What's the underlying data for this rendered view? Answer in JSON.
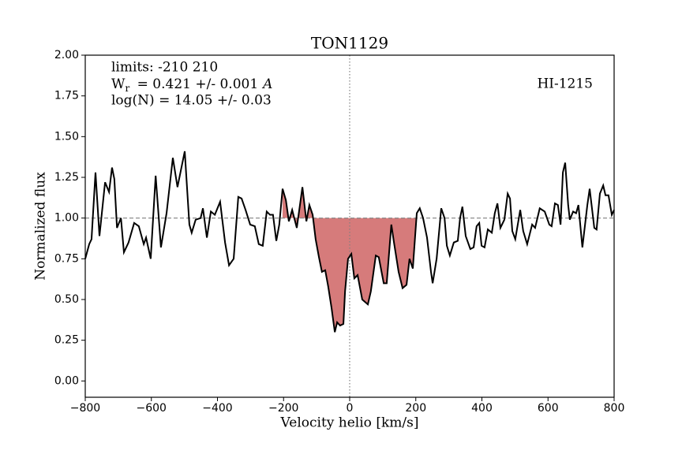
{
  "chart_data": {
    "type": "line",
    "title": "TON1129",
    "xlabel": "Velocity helio [km/s]",
    "ylabel": "Normalized flux",
    "annotations": {
      "limits": "limits: -210 210",
      "equivalent_width": {
        "main": "W",
        "sub": "r",
        "text": " = 0.421 +/- 0.001",
        "unit": "A"
      },
      "column_density": "log(N) = 14.05 +/- 0.03",
      "line_id": "HI-1215"
    },
    "color": "#000000",
    "fill_color": "#d67b7b",
    "shade_between": [
      -210,
      210
    ],
    "hline": 1,
    "vline": 0,
    "x": [
      -800,
      -788,
      -781,
      -769,
      -757,
      -740,
      -728,
      -719,
      -712,
      -704,
      -692,
      -683,
      -669,
      -652,
      -638,
      -623,
      -616,
      -602,
      -587,
      -571,
      -554,
      -535,
      -521,
      -499,
      -485,
      -478,
      -466,
      -451,
      -444,
      -432,
      -420,
      -408,
      -392,
      -377,
      -365,
      -351,
      -337,
      -327,
      -315,
      -301,
      -287,
      -275,
      -263,
      -251,
      -241,
      -232,
      -222,
      -213,
      -203,
      -193,
      -184,
      -174,
      -160,
      -143,
      -131,
      -122,
      -112,
      -103,
      -93,
      -84,
      -74,
      -65,
      -55,
      -45,
      -38,
      -29,
      -19,
      -14,
      -5,
      5,
      14,
      24,
      38,
      55,
      64,
      79,
      88,
      103,
      112,
      126,
      134,
      148,
      160,
      172,
      181,
      191,
      203,
      212,
      222,
      234,
      246,
      251,
      263,
      277,
      287,
      294,
      303,
      315,
      327,
      334,
      341,
      351,
      365,
      375,
      384,
      392,
      399,
      408,
      418,
      430,
      439,
      447,
      456,
      468,
      478,
      485,
      492,
      501,
      516,
      525,
      537,
      552,
      561,
      575,
      590,
      604,
      611,
      621,
      630,
      638,
      645,
      652,
      661,
      666,
      676,
      685,
      692,
      704,
      719,
      726,
      740,
      747,
      757,
      767,
      774,
      783,
      793,
      800
    ],
    "values": [
      0.75,
      0.84,
      0.87,
      1.28,
      0.89,
      1.22,
      1.16,
      1.31,
      1.24,
      0.94,
      1.0,
      0.79,
      0.85,
      0.97,
      0.95,
      0.84,
      0.88,
      0.75,
      1.26,
      0.82,
      1.03,
      1.37,
      1.19,
      1.41,
      0.96,
      0.91,
      0.99,
      1.0,
      1.06,
      0.88,
      1.04,
      1.02,
      1.1,
      0.85,
      0.71,
      0.75,
      1.13,
      1.12,
      1.05,
      0.96,
      0.95,
      0.84,
      0.83,
      1.04,
      1.02,
      1.02,
      0.86,
      0.96,
      1.18,
      1.11,
      0.98,
      1.05,
      0.94,
      1.19,
      0.98,
      1.08,
      1.02,
      0.87,
      0.76,
      0.67,
      0.68,
      0.58,
      0.45,
      0.3,
      0.36,
      0.34,
      0.35,
      0.55,
      0.75,
      0.78,
      0.63,
      0.65,
      0.5,
      0.47,
      0.55,
      0.77,
      0.76,
      0.6,
      0.6,
      0.96,
      0.85,
      0.67,
      0.57,
      0.59,
      0.75,
      0.69,
      1.03,
      1.06,
      1.0,
      0.88,
      0.67,
      0.6,
      0.75,
      1.06,
      1.0,
      0.83,
      0.77,
      0.85,
      0.86,
      1.0,
      1.07,
      0.89,
      0.81,
      0.82,
      0.95,
      0.97,
      0.83,
      0.82,
      0.93,
      0.91,
      1.03,
      1.09,
      0.94,
      0.99,
      1.15,
      1.12,
      0.92,
      0.87,
      1.05,
      0.92,
      0.84,
      0.96,
      0.94,
      1.06,
      1.04,
      0.96,
      0.95,
      1.09,
      1.08,
      0.96,
      1.28,
      1.34,
      1.08,
      0.99,
      1.04,
      1.03,
      1.08,
      0.82,
      1.08,
      1.18,
      0.94,
      0.93,
      1.15,
      1.2,
      1.14,
      1.14,
      1.02,
      1.05
    ],
    "xlim": [
      -800,
      800
    ],
    "ylim": [
      -0.1,
      2.0
    ],
    "xticks": [
      {
        "value": -800,
        "label": "−800"
      },
      {
        "value": -600,
        "label": "−600"
      },
      {
        "value": -400,
        "label": "−400"
      },
      {
        "value": -200,
        "label": "−200"
      },
      0,
      200,
      400,
      600,
      800
    ],
    "yticks": [
      {
        "value": 0,
        "label": "0.00"
      },
      {
        "value": 0.25,
        "label": "0.25"
      },
      {
        "value": 0.5,
        "label": "0.50"
      },
      {
        "value": 0.75,
        "label": "0.75"
      },
      {
        "value": 1,
        "label": "1.00"
      },
      {
        "value": 1.25,
        "label": "1.25"
      },
      {
        "value": 1.5,
        "label": "1.50"
      },
      {
        "value": 1.75,
        "label": "1.75"
      },
      {
        "value": 2,
        "label": "2.00"
      }
    ]
  }
}
